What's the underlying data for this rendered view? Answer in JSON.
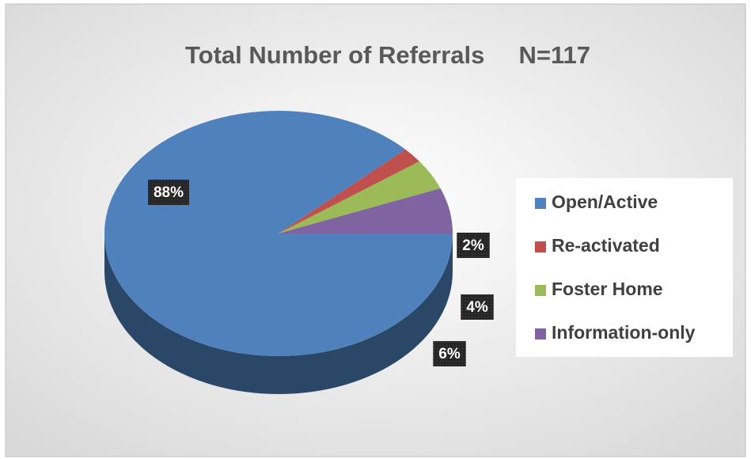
{
  "chart_data": {
    "type": "pie",
    "title": "Total Number of Referrals     N=117",
    "categories": [
      "Open/Active",
      "Re-activated",
      "Foster Home",
      "Information-only"
    ],
    "values": [
      88,
      2,
      4,
      6
    ],
    "value_labels": [
      "88%",
      "2%",
      "4%",
      "6%"
    ],
    "colors": [
      "#4f81bd",
      "#c0504d",
      "#9bbb59",
      "#8064a2"
    ],
    "legend": "right"
  }
}
